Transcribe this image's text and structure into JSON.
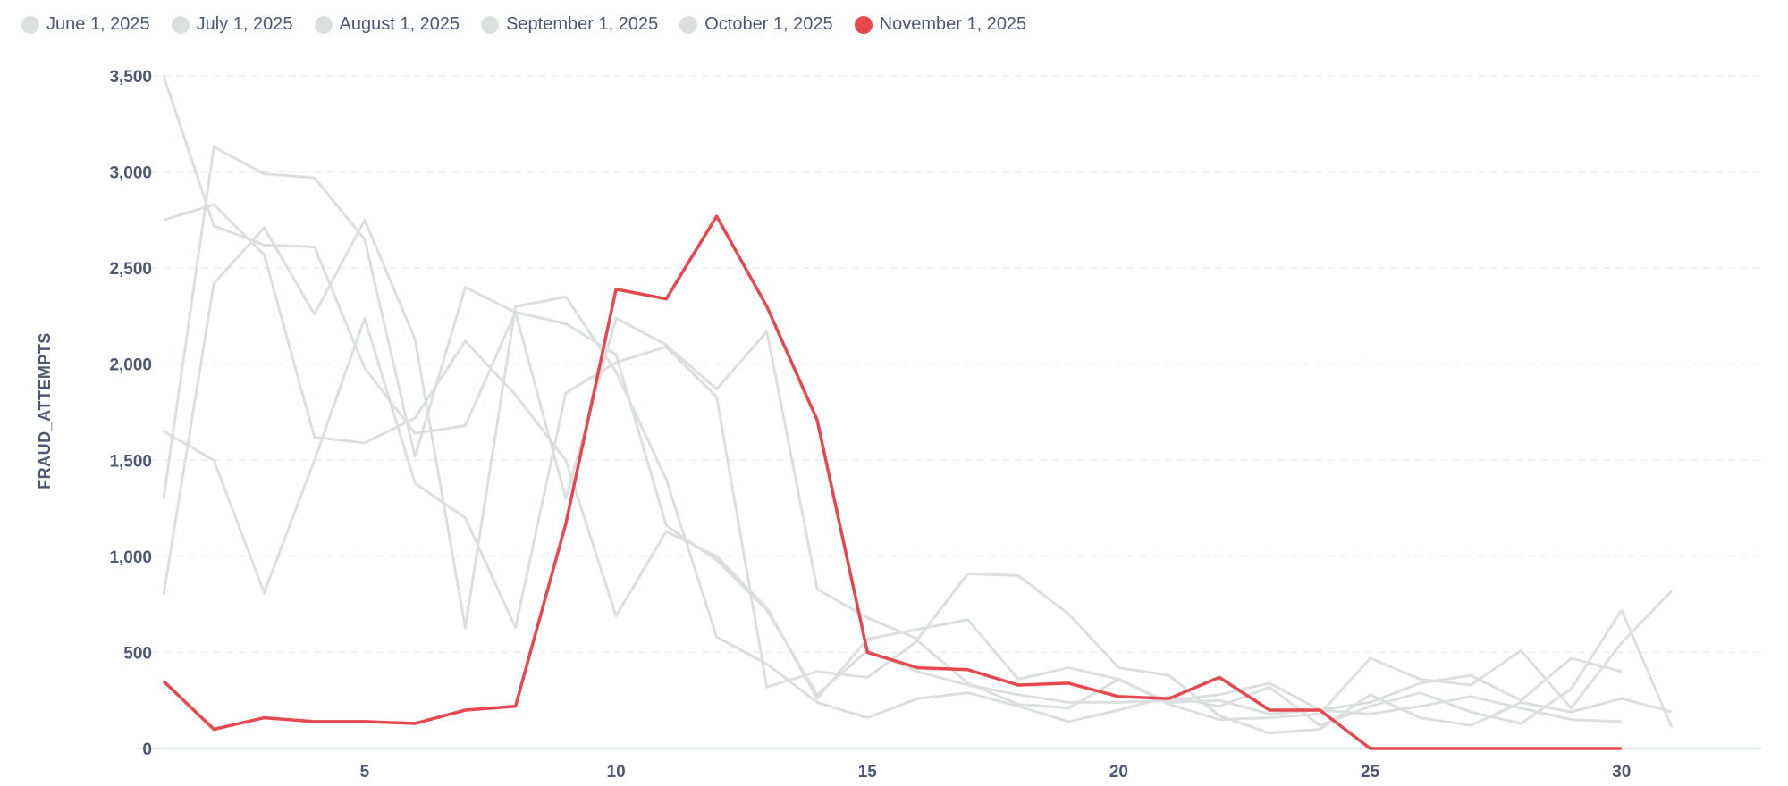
{
  "colors": {
    "inactive": "#dcdfe0",
    "highlight": "#e5484d",
    "grid": "#ebedef",
    "axis_text": "#4c5773"
  },
  "chart_data": {
    "type": "line",
    "xlabel": "",
    "ylabel": "FRAUD_ATTEMPTS",
    "xlim": [
      1,
      31
    ],
    "ylim": [
      0,
      3500
    ],
    "x_ticks": [
      5,
      10,
      15,
      20,
      25,
      30
    ],
    "y_ticks": [
      0,
      500,
      1000,
      1500,
      2000,
      2500,
      3000,
      3500
    ],
    "y_tick_labels": [
      "0",
      "500",
      "1,000",
      "1,500",
      "2,000",
      "2,500",
      "3,000",
      "3,500"
    ],
    "grid": "horizontal dashed",
    "legend_position": "top-left",
    "highlighted_series": "November 1, 2025",
    "series": [
      {
        "name": "June 1, 2025",
        "x": [
          1,
          2,
          3,
          4,
          5,
          6,
          7,
          8,
          9,
          10,
          11,
          12,
          13,
          14,
          15,
          16,
          17,
          18,
          19,
          20,
          21,
          22,
          23,
          24,
          25,
          26,
          27,
          28,
          29,
          30
        ],
        "values": [
          3500,
          2720,
          2620,
          2610,
          1980,
          1640,
          1680,
          2270,
          2210,
          2050,
          1160,
          980,
          720,
          280,
          510,
          400,
          330,
          280,
          240,
          240,
          250,
          280,
          340,
          200,
          180,
          220,
          270,
          210,
          150,
          140
        ]
      },
      {
        "name": "July 1, 2025",
        "x": [
          1,
          2,
          3,
          4,
          5,
          6,
          7,
          8,
          9,
          10,
          11,
          12,
          13,
          14,
          15,
          16,
          17,
          18,
          19,
          20,
          21,
          22,
          23,
          24,
          25,
          26,
          27,
          28,
          29,
          30,
          31
        ],
        "values": [
          2750,
          2830,
          2570,
          1620,
          1590,
          1720,
          2120,
          1840,
          1500,
          690,
          1130,
          1000,
          730,
          260,
          570,
          620,
          670,
          360,
          420,
          360,
          230,
          150,
          160,
          180,
          470,
          360,
          330,
          510,
          210,
          550,
          820
        ]
      },
      {
        "name": "August 1, 2025",
        "x": [
          1,
          2,
          3,
          4,
          5,
          6,
          7,
          8,
          9,
          10,
          11,
          12,
          13,
          14,
          15,
          16,
          17,
          18,
          19,
          20,
          21,
          22,
          23,
          24,
          25,
          26,
          27,
          28,
          29,
          30,
          31
        ],
        "values": [
          1300,
          3130,
          2990,
          2970,
          2650,
          1520,
          2400,
          2270,
          1300,
          2240,
          2100,
          1870,
          2170,
          830,
          680,
          570,
          910,
          900,
          700,
          420,
          380,
          170,
          80,
          100,
          280,
          160,
          120,
          240,
          190,
          260,
          190
        ]
      },
      {
        "name": "September 1, 2025",
        "x": [
          1,
          2,
          3,
          4,
          5,
          6,
          7,
          8,
          9,
          10,
          11,
          12,
          13,
          14,
          15,
          16,
          17,
          18,
          19,
          20,
          21,
          22,
          23,
          24,
          25,
          26,
          27,
          28,
          29,
          30
        ],
        "values": [
          1650,
          1500,
          810,
          1500,
          2240,
          1380,
          1200,
          630,
          1850,
          2010,
          2090,
          1830,
          320,
          400,
          370,
          560,
          340,
          230,
          210,
          360,
          240,
          250,
          180,
          200,
          240,
          340,
          380,
          250,
          470,
          400
        ]
      },
      {
        "name": "October 1, 2025",
        "x": [
          1,
          2,
          3,
          4,
          5,
          6,
          7,
          8,
          9,
          10,
          11,
          12,
          13,
          14,
          15,
          16,
          17,
          18,
          19,
          20,
          21,
          22,
          23,
          24,
          25,
          26,
          27,
          28,
          29,
          30,
          31
        ],
        "values": [
          800,
          2420,
          2710,
          2260,
          2750,
          2130,
          630,
          2300,
          2350,
          1960,
          1400,
          580,
          440,
          240,
          160,
          260,
          290,
          220,
          140,
          200,
          270,
          220,
          320,
          120,
          220,
          290,
          190,
          130,
          310,
          720,
          110
        ]
      },
      {
        "name": "November 1, 2025",
        "x": [
          1,
          2,
          3,
          4,
          5,
          6,
          7,
          8,
          9,
          10,
          11,
          12,
          13,
          14,
          15,
          16,
          17,
          18,
          19,
          20,
          21,
          22,
          23,
          24,
          25,
          26,
          27,
          28,
          29,
          30
        ],
        "values": [
          350,
          100,
          160,
          140,
          140,
          130,
          200,
          220,
          1170,
          2390,
          2340,
          2770,
          2300,
          1710,
          500,
          420,
          410,
          330,
          340,
          270,
          260,
          370,
          200,
          200,
          0,
          0,
          0,
          0,
          0,
          0
        ]
      }
    ]
  }
}
